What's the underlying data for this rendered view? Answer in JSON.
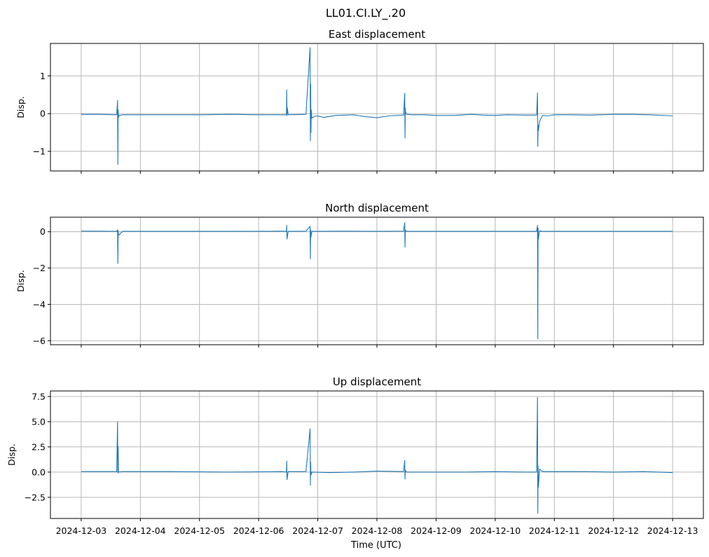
{
  "figure": {
    "suptitle": "LL01.CI.LY_.20",
    "xlabel": "Time (UTC)"
  },
  "chart_data": [
    {
      "type": "line",
      "title": "East displacement",
      "ylabel": "Disp.",
      "xlim": [
        -0.52,
        10.52
      ],
      "ylim": [
        -1.52,
        1.86
      ],
      "yticks": [
        1,
        0,
        -1
      ],
      "ytick_labels": [
        "1",
        "0",
        "−1"
      ],
      "xticks": [
        0,
        1,
        2,
        3,
        4,
        5,
        6,
        7,
        8,
        9,
        10
      ],
      "xtick_labels": [
        "2024-12-03",
        "2024-12-04",
        "2024-12-05",
        "2024-12-06",
        "2024-12-07",
        "2024-12-08",
        "2024-12-09",
        "2024-12-10",
        "2024-12-11",
        "2024-12-12",
        "2024-12-13"
      ],
      "show_xtick_labels": false,
      "grid": true,
      "color": "#1f77b4",
      "series": [
        {
          "x": [
            0,
            0.3,
            0.6,
            0.615,
            0.62,
            0.625,
            0.63,
            0.64,
            0.7,
            1.0,
            1.5,
            2.0,
            2.5,
            3.0,
            3.4,
            3.47,
            3.475,
            3.48,
            3.485,
            3.5,
            3.8,
            3.87,
            3.875,
            3.88,
            3.885,
            3.89,
            3.9,
            3.95,
            4.0,
            4.1,
            4.3,
            4.6,
            4.8,
            5.0,
            5.2,
            5.45,
            5.47,
            5.475,
            5.48,
            5.485,
            5.5,
            5.6,
            5.8,
            6.0,
            6.3,
            6.6,
            6.8,
            7.0,
            7.2,
            7.5,
            7.7,
            7.715,
            7.72,
            7.725,
            7.73,
            7.75,
            7.8,
            7.9,
            8.0,
            8.3,
            8.6,
            9.0,
            9.3,
            9.6,
            10.0
          ],
          "y": [
            -0.02,
            -0.02,
            -0.03,
            0.35,
            -1.35,
            0.1,
            -0.1,
            -0.05,
            -0.03,
            -0.03,
            -0.03,
            -0.03,
            -0.02,
            -0.03,
            -0.03,
            -0.03,
            0.63,
            -0.05,
            0.15,
            -0.03,
            -0.02,
            1.75,
            -0.72,
            0.78,
            -0.5,
            0.1,
            -0.12,
            -0.07,
            -0.06,
            -0.1,
            -0.05,
            -0.03,
            -0.08,
            -0.11,
            -0.06,
            -0.04,
            0.54,
            -0.65,
            0.15,
            0.05,
            -0.02,
            -0.03,
            -0.03,
            -0.05,
            -0.05,
            -0.02,
            -0.04,
            -0.05,
            -0.03,
            -0.04,
            -0.04,
            0.55,
            -0.87,
            -0.3,
            -0.45,
            -0.2,
            -0.05,
            -0.06,
            -0.03,
            -0.03,
            -0.04,
            -0.02,
            -0.02,
            -0.03,
            -0.06
          ]
        }
      ]
    },
    {
      "type": "line",
      "title": "North displacement",
      "ylabel": "Disp.",
      "xlim": [
        -0.52,
        10.52
      ],
      "ylim": [
        -6.22,
        0.8
      ],
      "yticks": [
        0,
        -2,
        -4,
        -6
      ],
      "ytick_labels": [
        "0",
        "−2",
        "−4",
        "−6"
      ],
      "xticks": [
        0,
        1,
        2,
        3,
        4,
        5,
        6,
        7,
        8,
        9,
        10
      ],
      "xtick_labels": [
        "2024-12-03",
        "2024-12-04",
        "2024-12-05",
        "2024-12-06",
        "2024-12-07",
        "2024-12-08",
        "2024-12-09",
        "2024-12-10",
        "2024-12-11",
        "2024-12-12",
        "2024-12-13"
      ],
      "show_xtick_labels": false,
      "grid": true,
      "color": "#1f77b4",
      "series": [
        {
          "x": [
            0,
            0.3,
            0.6,
            0.615,
            0.62,
            0.625,
            0.63,
            0.7,
            1.5,
            2.5,
            3.4,
            3.47,
            3.475,
            3.48,
            3.5,
            3.8,
            3.87,
            3.875,
            3.88,
            3.885,
            3.9,
            4.5,
            5.0,
            5.45,
            5.47,
            5.475,
            5.48,
            5.5,
            6.0,
            6.5,
            7.0,
            7.5,
            7.7,
            7.715,
            7.72,
            7.725,
            7.73,
            7.75,
            7.8,
            8.5,
            9.0,
            9.5,
            10.0
          ],
          "y": [
            0.03,
            0.03,
            0.02,
            0.1,
            -1.75,
            0.05,
            -0.2,
            0.02,
            0.02,
            0.02,
            0.03,
            0.02,
            0.35,
            -0.4,
            0.02,
            0.03,
            0.3,
            -1.5,
            0.1,
            -0.3,
            0.02,
            0.03,
            0.02,
            0.03,
            0.5,
            -0.85,
            0.1,
            0.02,
            0.02,
            0.02,
            0.02,
            0.02,
            0.02,
            0.35,
            -5.9,
            0.2,
            -0.4,
            0.05,
            0.02,
            0.02,
            0.02,
            0.02,
            0.02
          ]
        }
      ]
    },
    {
      "type": "line",
      "title": "Up displacement",
      "ylabel": "Disp.",
      "xlim": [
        -0.52,
        10.52
      ],
      "ylim": [
        -4.6,
        8.05
      ],
      "yticks": [
        7.5,
        5.0,
        2.5,
        0.0,
        -2.5
      ],
      "ytick_labels": [
        "7.5",
        "5.0",
        "2.5",
        "0.0",
        "−2.5"
      ],
      "xticks": [
        0,
        1,
        2,
        3,
        4,
        5,
        6,
        7,
        8,
        9,
        10
      ],
      "xtick_labels": [
        "2024-12-03",
        "2024-12-04",
        "2024-12-05",
        "2024-12-06",
        "2024-12-07",
        "2024-12-08",
        "2024-12-09",
        "2024-12-10",
        "2024-12-11",
        "2024-12-12",
        "2024-12-13"
      ],
      "show_xtick_labels": true,
      "grid": true,
      "color": "#1f77b4",
      "series": [
        {
          "x": [
            0,
            0.3,
            0.6,
            0.615,
            0.62,
            0.625,
            0.63,
            0.7,
            1.5,
            2.5,
            3.4,
            3.47,
            3.475,
            3.48,
            3.5,
            3.8,
            3.87,
            3.875,
            3.88,
            3.885,
            3.9,
            4.2,
            4.6,
            5.0,
            5.45,
            5.47,
            5.475,
            5.48,
            5.5,
            6.0,
            6.5,
            7.0,
            7.5,
            7.7,
            7.715,
            7.72,
            7.725,
            7.73,
            7.75,
            7.8,
            8.5,
            9.0,
            9.5,
            10.0
          ],
          "y": [
            0.05,
            0.05,
            0.05,
            5.0,
            -0.1,
            2.5,
            0.0,
            0.05,
            0.05,
            0.0,
            0.05,
            0.0,
            1.1,
            -0.75,
            0.05,
            0.05,
            4.3,
            -1.3,
            1.0,
            -0.3,
            0.0,
            -0.05,
            0.0,
            0.1,
            0.05,
            1.15,
            -0.7,
            0.2,
            0.0,
            0.0,
            0.0,
            0.05,
            0.0,
            0.0,
            7.4,
            -4.1,
            0.6,
            -1.5,
            0.3,
            0.05,
            0.05,
            0.0,
            0.05,
            -0.05
          ]
        }
      ]
    }
  ]
}
